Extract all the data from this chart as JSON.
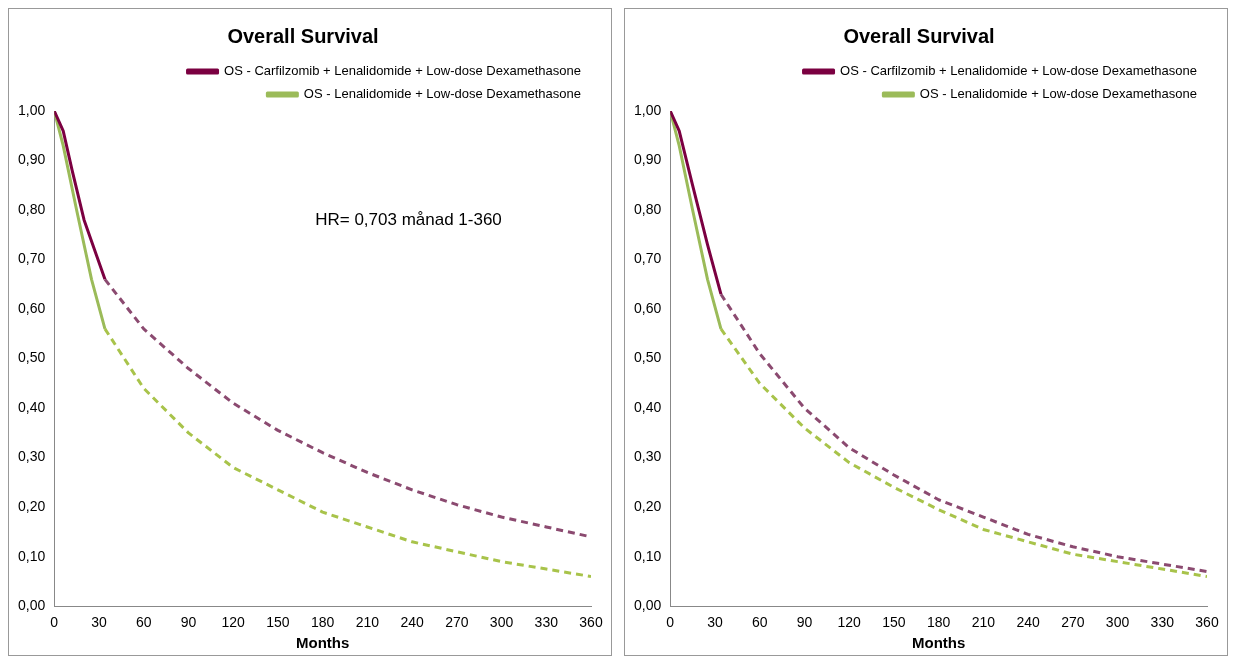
{
  "chart_data": [
    {
      "type": "line",
      "title": "Overall Survival",
      "xlabel": "Months",
      "legend": "top right",
      "grid": false,
      "marker": "none",
      "xlim": [
        0,
        360
      ],
      "ylim": [
        0,
        1
      ],
      "xticks": [
        0,
        30,
        60,
        90,
        120,
        150,
        180,
        210,
        240,
        270,
        300,
        330,
        360
      ],
      "yticks": [
        {
          "value": 0,
          "label": "0,00"
        },
        {
          "value": 0.1,
          "label": "0,10"
        },
        {
          "value": 0.2,
          "label": "0,20"
        },
        {
          "value": 0.3,
          "label": "0,30"
        },
        {
          "value": 0.4,
          "label": "0,40"
        },
        {
          "value": 0.5,
          "label": "0,50"
        },
        {
          "value": 0.6,
          "label": "0,60"
        },
        {
          "value": 0.7,
          "label": "0,70"
        },
        {
          "value": 0.8,
          "label": "0,80"
        },
        {
          "value": 0.9,
          "label": "0,90"
        },
        {
          "value": 1,
          "label": "1,00"
        }
      ],
      "annotations": [
        "HR= 0,703 månad 1-360"
      ],
      "series": [
        {
          "name": "OS - Carfilzomib + Lenalidomide + Low-dose Dexamethasone",
          "color": "#7b0041",
          "line_style": "solid",
          "x": [
            0,
            6,
            12,
            20,
            34
          ],
          "values": [
            1.0,
            0.96,
            0.88,
            0.78,
            0.66
          ]
        },
        {
          "name": "OS - Lenalidomide + Low-dose Dexamethasone",
          "color": "#9bbb59",
          "line_style": "solid",
          "x": [
            0,
            6,
            15,
            25,
            34
          ],
          "values": [
            1.0,
            0.93,
            0.8,
            0.66,
            0.56
          ]
        },
        {
          "color": "#8b4a70",
          "line_style": "dashed",
          "x": [
            34,
            60,
            90,
            120,
            150,
            180,
            210,
            240,
            270,
            300,
            330,
            360
          ],
          "values": [
            0.66,
            0.56,
            0.48,
            0.41,
            0.355,
            0.31,
            0.27,
            0.235,
            0.205,
            0.18,
            0.16,
            0.14
          ]
        },
        {
          "color": "#a8c34a",
          "line_style": "dashed",
          "x": [
            34,
            60,
            90,
            120,
            150,
            180,
            210,
            240,
            270,
            300,
            330,
            360
          ],
          "values": [
            0.56,
            0.44,
            0.35,
            0.28,
            0.235,
            0.19,
            0.16,
            0.13,
            0.11,
            0.09,
            0.075,
            0.06
          ]
        }
      ]
    },
    {
      "type": "line",
      "title": "Overall Survival",
      "xlabel": "Months",
      "legend": "top right",
      "grid": false,
      "marker": "none",
      "xlim": [
        0,
        360
      ],
      "ylim": [
        0,
        1
      ],
      "xticks": [
        0,
        30,
        60,
        90,
        120,
        150,
        180,
        210,
        240,
        270,
        300,
        330,
        360
      ],
      "yticks": [
        {
          "value": 0,
          "label": "0,00"
        },
        {
          "value": 0.1,
          "label": "0,10"
        },
        {
          "value": 0.2,
          "label": "0,20"
        },
        {
          "value": 0.3,
          "label": "0,30"
        },
        {
          "value": 0.4,
          "label": "0,40"
        },
        {
          "value": 0.5,
          "label": "0,50"
        },
        {
          "value": 0.6,
          "label": "0,60"
        },
        {
          "value": 0.7,
          "label": "0,70"
        },
        {
          "value": 0.8,
          "label": "0,80"
        },
        {
          "value": 0.9,
          "label": "0,90"
        },
        {
          "value": 1,
          "label": "1,00"
        }
      ],
      "series": [
        {
          "name": "OS - Carfilzomib + Lenalidomide + Low-dose Dexamethasone",
          "color": "#7b0041",
          "line_style": "solid",
          "x": [
            0,
            6,
            15,
            25,
            34
          ],
          "values": [
            1.0,
            0.96,
            0.85,
            0.73,
            0.63
          ]
        },
        {
          "name": "OS - Lenalidomide + Low-dose Dexamethasone",
          "color": "#9bbb59",
          "line_style": "solid",
          "x": [
            0,
            6,
            15,
            25,
            34
          ],
          "values": [
            1.0,
            0.93,
            0.8,
            0.66,
            0.56
          ]
        },
        {
          "color": "#8b4a70",
          "line_style": "dashed",
          "x": [
            34,
            60,
            90,
            120,
            150,
            180,
            210,
            240,
            270,
            300,
            330,
            360
          ],
          "values": [
            0.63,
            0.51,
            0.4,
            0.32,
            0.265,
            0.215,
            0.18,
            0.145,
            0.12,
            0.1,
            0.085,
            0.07
          ]
        },
        {
          "color": "#a8c34a",
          "line_style": "dashed",
          "x": [
            34,
            60,
            90,
            120,
            150,
            180,
            210,
            240,
            270,
            300,
            330,
            360
          ],
          "values": [
            0.56,
            0.45,
            0.36,
            0.29,
            0.24,
            0.195,
            0.155,
            0.13,
            0.105,
            0.09,
            0.075,
            0.06
          ]
        }
      ]
    }
  ]
}
